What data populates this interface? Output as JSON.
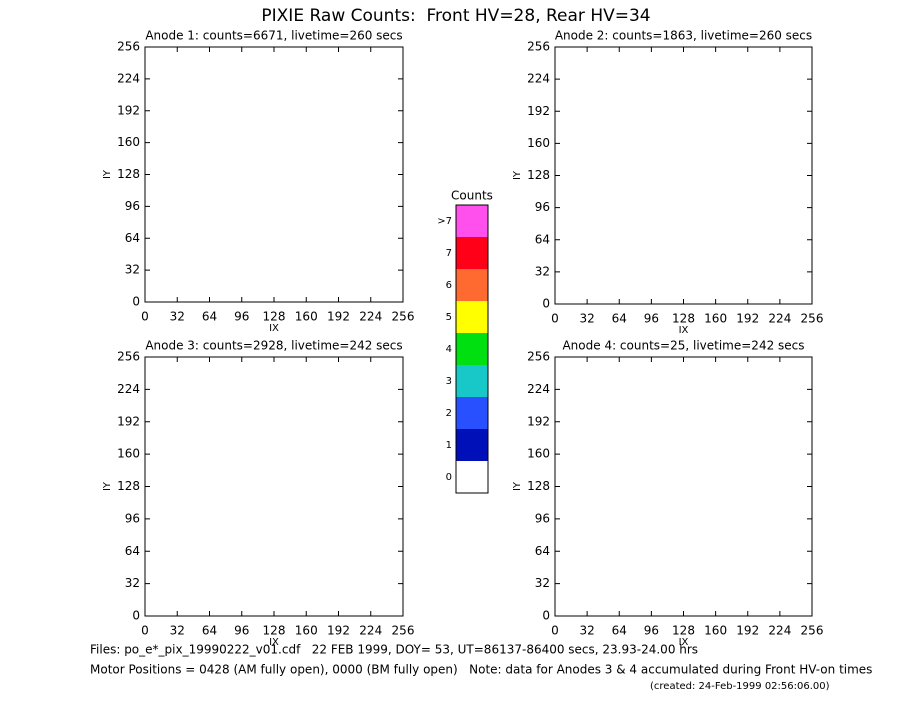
{
  "title": "PIXIE Raw Counts:  Front HV=28, Rear HV=34",
  "chart_data": [
    {
      "type": "heatmap",
      "title": "Anode 1: counts=6671, livetime=260 secs",
      "x_label": "IX",
      "y_label": "IY",
      "xlim": [
        0,
        256
      ],
      "ylim": [
        0,
        256
      ],
      "xticks": [
        0,
        32,
        64,
        96,
        128,
        160,
        192,
        224,
        256
      ],
      "yticks": [
        0,
        32,
        64,
        96,
        128,
        160,
        192,
        224,
        256
      ]
    },
    {
      "type": "heatmap",
      "title": "Anode 2: counts=1863, livetime=260 secs",
      "x_label": "IX",
      "y_label": "IY",
      "xlim": [
        0,
        256
      ],
      "ylim": [
        0,
        256
      ],
      "xticks": [
        0,
        32,
        64,
        96,
        128,
        160,
        192,
        224,
        256
      ],
      "yticks": [
        0,
        32,
        64,
        96,
        128,
        160,
        192,
        224,
        256
      ]
    },
    {
      "type": "heatmap",
      "title": "Anode 3: counts=2928, livetime=242 secs",
      "x_label": "IX",
      "y_label": "IY",
      "xlim": [
        0,
        256
      ],
      "ylim": [
        0,
        256
      ],
      "xticks": [
        0,
        32,
        64,
        96,
        128,
        160,
        192,
        224,
        256
      ],
      "yticks": [
        0,
        32,
        64,
        96,
        128,
        160,
        192,
        224,
        256
      ]
    },
    {
      "type": "heatmap",
      "title": "Anode 4: counts=25, livetime=242 secs",
      "x_label": "IX",
      "y_label": "IY",
      "xlim": [
        0,
        256
      ],
      "ylim": [
        0,
        256
      ],
      "xticks": [
        0,
        32,
        64,
        96,
        128,
        160,
        192,
        224,
        256
      ],
      "yticks": [
        0,
        32,
        64,
        96,
        128,
        160,
        192,
        224,
        256
      ]
    }
  ],
  "colorbar": {
    "title": "Counts",
    "categories": [
      "0",
      "1",
      "2",
      "3",
      "4",
      "5",
      "6",
      "7",
      ">7"
    ],
    "colors": [
      "#ffffff",
      "#0010b8",
      "#2850ff",
      "#18c8c8",
      "#00e010",
      "#ffff00",
      "#ff6a30",
      "#ff0018",
      "#ff50ee"
    ]
  },
  "footer": {
    "files": "Files: po_e*_pix_19990222_v01.cdf   22 FEB 1999, DOY= 53, UT=86137-86400 secs, 23.93-24.00 hrs",
    "motor": "Motor Positions = 0428 (AM fully open), 0000 (BM fully open)   Note: data for Anodes 3 & 4 accumulated during Front HV-on times",
    "created": "(created: 24-Feb-1999 02:56:06.00)"
  }
}
